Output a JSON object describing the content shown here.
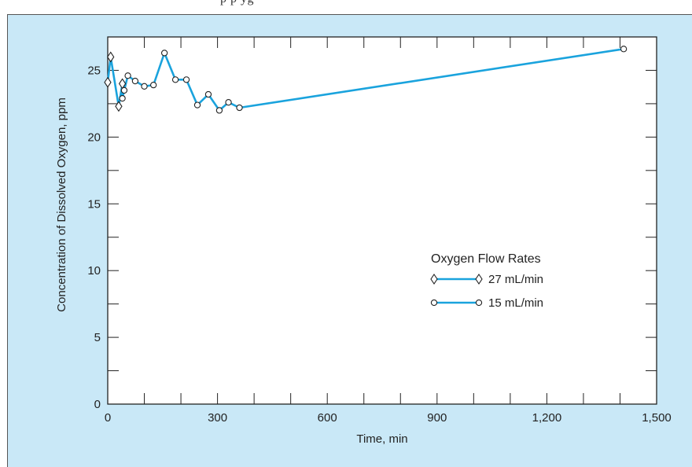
{
  "page": {
    "header_fragment": "p   p                                                                                              yg",
    "panel_background": "#c9e8f7",
    "plot_background": "#ffffff"
  },
  "chart_data": {
    "type": "line",
    "xlabel": "Time, min",
    "ylabel": "Concentration of Dissolved Oxygen, ppm",
    "xlim": [
      0,
      1500
    ],
    "ylim": [
      0,
      27.5
    ],
    "x_ticks": [
      0,
      300,
      600,
      900,
      1200,
      1500
    ],
    "x_tick_labels": [
      "0",
      "300",
      "600",
      "900",
      "1,200",
      "1,500"
    ],
    "x_minor_step": 100,
    "y_ticks": [
      0,
      5,
      10,
      15,
      20,
      25
    ],
    "y_tick_labels": [
      "0",
      "5",
      "10",
      "15",
      "20",
      "25"
    ],
    "y_minor_step": 2.5,
    "grid": false,
    "line_color": "#1aa3dd",
    "legend": {
      "title": "Oxygen Flow Rates",
      "placement": "center-right"
    },
    "series": [
      {
        "name": "27 mL/min",
        "marker": "diamond",
        "points": [
          {
            "x": 0,
            "y": 24.1
          },
          {
            "x": 8,
            "y": 26.0
          },
          {
            "x": 30,
            "y": 22.3
          },
          {
            "x": 40,
            "y": 24.0
          }
        ]
      },
      {
        "name": "15 mL/min",
        "marker": "circle",
        "points": [
          {
            "x": 40,
            "y": 22.9
          },
          {
            "x": 45,
            "y": 23.5
          },
          {
            "x": 55,
            "y": 24.6
          },
          {
            "x": 75,
            "y": 24.2
          },
          {
            "x": 100,
            "y": 23.8
          },
          {
            "x": 125,
            "y": 23.9
          },
          {
            "x": 155,
            "y": 26.3
          },
          {
            "x": 185,
            "y": 24.3
          },
          {
            "x": 215,
            "y": 24.3
          },
          {
            "x": 245,
            "y": 22.4
          },
          {
            "x": 275,
            "y": 23.2
          },
          {
            "x": 305,
            "y": 22.0
          },
          {
            "x": 330,
            "y": 22.6
          },
          {
            "x": 360,
            "y": 22.2
          },
          {
            "x": 1410,
            "y": 26.6
          }
        ]
      }
    ]
  }
}
